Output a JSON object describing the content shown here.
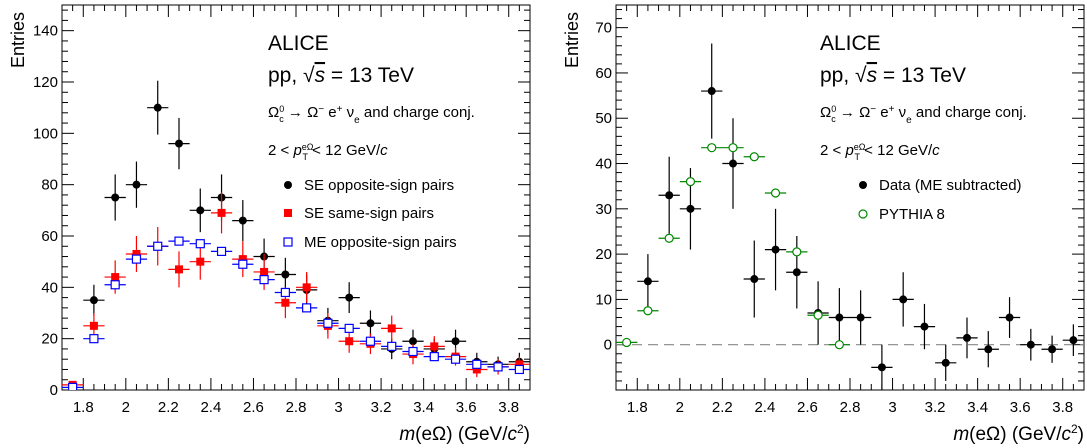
{
  "chart_data": [
    {
      "type": "scatter",
      "title": "",
      "xlabel": "m(eΩ) (GeV/c²)",
      "ylabel": "Entries",
      "xlim": [
        1.7,
        3.9
      ],
      "ylim": [
        0,
        150
      ],
      "xticks": [
        1.8,
        2,
        2.2,
        2.4,
        2.6,
        2.8,
        3,
        3.2,
        3.4,
        3.6,
        3.8
      ],
      "xtick_labels": [
        "1.8",
        "2",
        "2.2",
        "2.4",
        "2.6",
        "2.8",
        "3",
        "3.2",
        "3.4",
        "3.6",
        "3.8"
      ],
      "yticks": [
        0,
        20,
        40,
        60,
        80,
        100,
        120,
        140
      ],
      "ytick_labels": [
        "0",
        "20",
        "40",
        "60",
        "80",
        "100",
        "120",
        "140"
      ],
      "text": {
        "experiment": "ALICE",
        "system": "pp, √s = 13 TeV",
        "decay": "Ωc⁰ → Ω⁻ e⁺ νe and charge conj.",
        "pt_range": "2 < pT(eΩ) < 12 GeV/c"
      },
      "legend_position": "right",
      "series": [
        {
          "name": "SE opposite-sign pairs",
          "marker": "filled-circle",
          "color": "#000000",
          "x": [
            1.75,
            1.85,
            1.95,
            2.05,
            2.15,
            2.25,
            2.35,
            2.45,
            2.55,
            2.65,
            2.75,
            2.85,
            2.95,
            3.05,
            3.15,
            3.25,
            3.35,
            3.45,
            3.55,
            3.65,
            3.75,
            3.85
          ],
          "y": [
            1,
            35,
            75,
            80,
            110,
            96,
            70,
            75,
            66,
            52,
            45,
            39,
            27,
            36,
            26,
            16,
            19,
            16,
            19,
            11,
            10,
            11
          ],
          "yerr": [
            1,
            6,
            9,
            9,
            10.5,
            10,
            8.5,
            9,
            8,
            7,
            6.5,
            6,
            5,
            6,
            5,
            4,
            4.5,
            4,
            4.5,
            3.5,
            3,
            3.5
          ]
        },
        {
          "name": "SE same-sign pairs",
          "marker": "filled-square",
          "color": "#ff0000",
          "x": [
            1.75,
            1.85,
            1.95,
            2.05,
            2.15,
            2.25,
            2.35,
            2.45,
            2.55,
            2.65,
            2.75,
            2.85,
            2.95,
            3.05,
            3.15,
            3.25,
            3.35,
            3.45,
            3.55,
            3.65,
            3.75,
            3.85
          ],
          "y": [
            2,
            25,
            44,
            53,
            56,
            47,
            50,
            69,
            51,
            46,
            34,
            40,
            25,
            19,
            18,
            24,
            14,
            17,
            13,
            8,
            9,
            10
          ],
          "yerr": [
            1.5,
            5,
            6.5,
            7,
            7.5,
            7,
            7,
            8,
            7,
            7,
            6,
            6,
            5,
            4.5,
            4,
            5,
            4,
            4,
            3.5,
            3,
            3,
            3
          ]
        },
        {
          "name": "ME opposite-sign pairs",
          "marker": "open-square",
          "color": "#0000ff",
          "x": [
            1.75,
            1.85,
            1.95,
            2.05,
            2.15,
            2.25,
            2.35,
            2.45,
            2.55,
            2.65,
            2.75,
            2.85,
            2.95,
            3.05,
            3.15,
            3.25,
            3.35,
            3.45,
            3.55,
            3.65,
            3.75,
            3.85
          ],
          "y": [
            1,
            20,
            41,
            51,
            56,
            58,
            57,
            54,
            49,
            43,
            38,
            32,
            26,
            24,
            19,
            17,
            15,
            13,
            12,
            10,
            9,
            8
          ],
          "yerr": [
            0.5,
            1,
            1,
            1,
            1,
            1,
            1,
            1,
            1,
            1,
            1,
            1,
            1,
            1,
            1,
            1,
            1,
            1,
            1,
            1,
            1,
            1
          ]
        }
      ]
    },
    {
      "type": "scatter",
      "title": "",
      "xlabel": "m(eΩ) (GeV/c²)",
      "ylabel": "Entries",
      "xlim": [
        1.7,
        3.9
      ],
      "ylim": [
        -10,
        75
      ],
      "xticks": [
        1.8,
        2,
        2.2,
        2.4,
        2.6,
        2.8,
        3,
        3.2,
        3.4,
        3.6,
        3.8
      ],
      "xtick_labels": [
        "1.8",
        "2",
        "2.2",
        "2.4",
        "2.6",
        "2.8",
        "3",
        "3.2",
        "3.4",
        "3.6",
        "3.8"
      ],
      "yticks": [
        0,
        10,
        20,
        30,
        40,
        50,
        60,
        70
      ],
      "ytick_labels": [
        "0",
        "10",
        "20",
        "30",
        "40",
        "50",
        "60",
        "70"
      ],
      "zero_line": true,
      "text": {
        "experiment": "ALICE",
        "system": "pp, √s = 13 TeV",
        "decay": "Ωc⁰ → Ω⁻ e⁺ νe and charge conj.",
        "pt_range": "2 < pT(eΩ) < 12 GeV/c"
      },
      "legend_position": "right",
      "series": [
        {
          "name": "Data (ME subtracted)",
          "marker": "filled-circle",
          "color": "#000000",
          "x": [
            1.75,
            1.85,
            1.95,
            2.05,
            2.15,
            2.25,
            2.35,
            2.45,
            2.55,
            2.65,
            2.75,
            2.85,
            2.95,
            3.05,
            3.15,
            3.25,
            3.35,
            3.45,
            3.55,
            3.65,
            3.75,
            3.85
          ],
          "y": [
            0.5,
            14,
            33,
            30,
            56,
            40,
            14.5,
            21,
            16,
            7,
            6,
            6,
            -5,
            10,
            4,
            -4,
            1.5,
            -1,
            6,
            0,
            -1,
            1
          ],
          "yerr": [
            1,
            6,
            8.5,
            9,
            10.5,
            10,
            8.5,
            9,
            8,
            7,
            6.5,
            6,
            5,
            6,
            5,
            4,
            4.5,
            4,
            4.5,
            3.5,
            3,
            3.5
          ]
        },
        {
          "name": "PYTHIA 8",
          "marker": "open-circle",
          "color": "#008800",
          "x": [
            1.75,
            1.85,
            1.95,
            2.05,
            2.15,
            2.25,
            2.35,
            2.45,
            2.55,
            2.65,
            2.75
          ],
          "y": [
            0.5,
            7.5,
            23.5,
            36,
            43.5,
            43.5,
            41.5,
            33.5,
            20.5,
            6.5,
            0
          ]
        }
      ]
    }
  ]
}
